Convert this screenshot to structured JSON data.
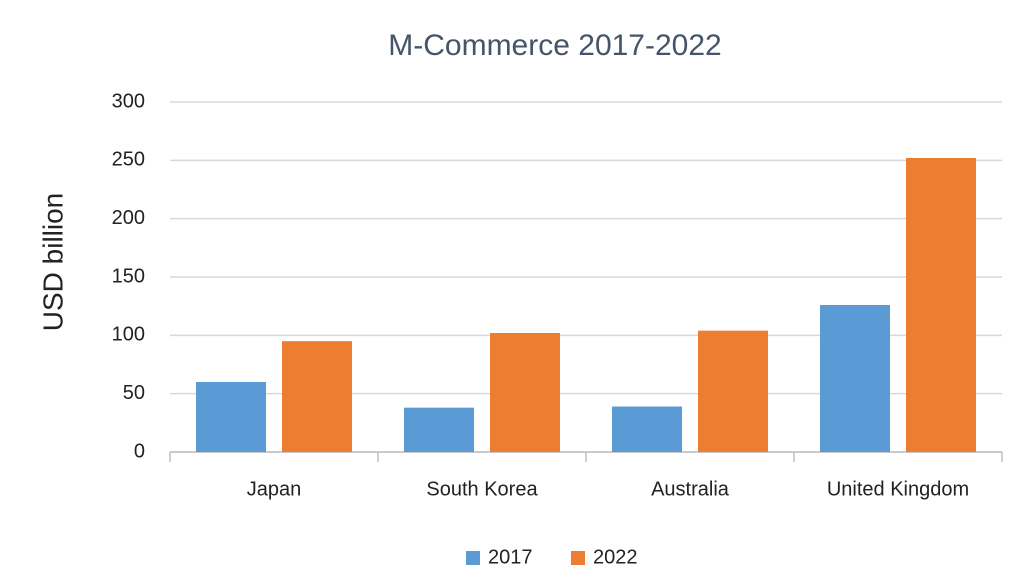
{
  "chart_data": {
    "type": "bar",
    "title": "M-Commerce 2017-2022",
    "y_label": "USD billion",
    "categories": [
      "Japan",
      "South Korea",
      "Australia",
      "United Kingdom"
    ],
    "series": [
      {
        "name": "2017",
        "color": "#5b9bd5",
        "values": [
          60,
          38,
          39,
          126
        ]
      },
      {
        "name": "2022",
        "color": "#ed7d31",
        "values": [
          95,
          102,
          104,
          252
        ]
      }
    ],
    "ylim": [
      0,
      300
    ],
    "yticks": [
      0,
      50,
      100,
      150,
      200,
      250,
      300
    ],
    "grid": true,
    "legend": "bottom"
  }
}
